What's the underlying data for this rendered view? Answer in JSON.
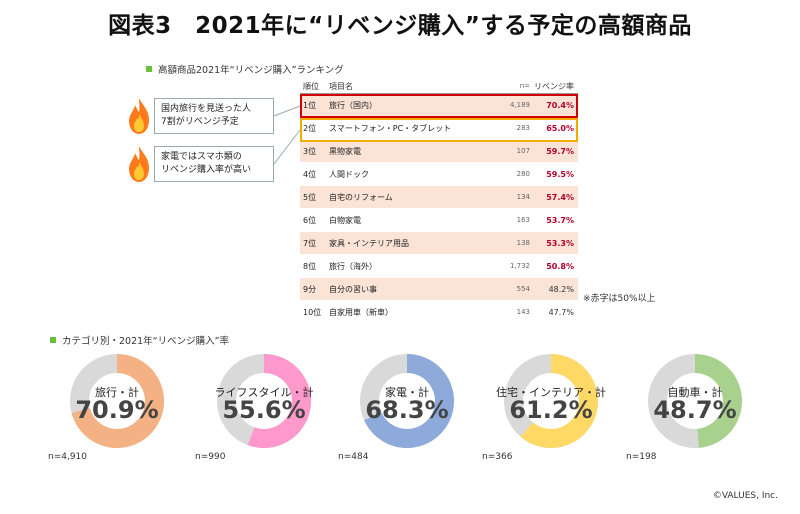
{
  "title": "図表3　2021年に“リベンジ購入”する予定の高額商品",
  "section_ranking": "高額商品2021年“リベンジ購入”ランキング",
  "section_category": "カテゴリ別・2021年“リベンジ購入”率",
  "callouts": [
    {
      "line1": "国内旅行を見送った人",
      "line2": "7割がリベンジ予定"
    },
    {
      "line1": "家電ではスマホ類の",
      "line2": "リベンジ購入率が高い"
    }
  ],
  "note": "※赤字は50%以上",
  "copyright": "©VALUES, Inc.",
  "colors": {
    "red_text": "#b3002a",
    "highlight_red": "#d40000",
    "highlight_gold": "#f0ad00",
    "row_shade": "#fbe3d6",
    "donut_remainder": "#d9d9d9"
  },
  "chart_data": [
    {
      "type": "table",
      "headers": {
        "rank": "順位",
        "item": "項目名",
        "n": "n=",
        "rate": "リベンジ率"
      },
      "rows": [
        {
          "rank": "1位",
          "item": "旅行（国内）",
          "n": "4,189",
          "rate": "70.4%",
          "over50": true
        },
        {
          "rank": "2位",
          "item": "スマートフォン・PC・タブレット",
          "n": "283",
          "rate": "65.0%",
          "over50": true
        },
        {
          "rank": "3位",
          "item": "黒物家電",
          "n": "107",
          "rate": "59.7%",
          "over50": true
        },
        {
          "rank": "4位",
          "item": "人間ドック",
          "n": "280",
          "rate": "59.5%",
          "over50": true
        },
        {
          "rank": "5位",
          "item": "自宅のリフォーム",
          "n": "134",
          "rate": "57.4%",
          "over50": true
        },
        {
          "rank": "6位",
          "item": "白物家電",
          "n": "163",
          "rate": "53.7%",
          "over50": true
        },
        {
          "rank": "7位",
          "item": "家具・インテリア用品",
          "n": "138",
          "rate": "53.3%",
          "over50": true
        },
        {
          "rank": "8位",
          "item": "旅行（海外）",
          "n": "1,732",
          "rate": "50.8%",
          "over50": true
        },
        {
          "rank": "9分",
          "item": "自分の習い事",
          "n": "554",
          "rate": "48.2%",
          "over50": false
        },
        {
          "rank": "10位",
          "item": "自家用車（新車）",
          "n": "143",
          "rate": "47.7%",
          "over50": false
        }
      ]
    },
    {
      "type": "pie",
      "donuts": [
        {
          "category": "旅行・計",
          "value": 70.9,
          "label": "70.9%",
          "n": "n=4,910",
          "color": "#f4b183"
        },
        {
          "category": "ライフスタイル・計",
          "value": 55.6,
          "label": "55.6%",
          "n": "n=990",
          "color": "#ff99cc"
        },
        {
          "category": "家電・計",
          "value": 68.3,
          "label": "68.3%",
          "n": "n=484",
          "color": "#8eaadb"
        },
        {
          "category": "住宅・インテリア・計",
          "value": 61.2,
          "label": "61.2%",
          "n": "n=366",
          "color": "#ffd966"
        },
        {
          "category": "自動車・計",
          "value": 48.7,
          "label": "48.7%",
          "n": "n=198",
          "color": "#a9d18e"
        }
      ]
    }
  ]
}
